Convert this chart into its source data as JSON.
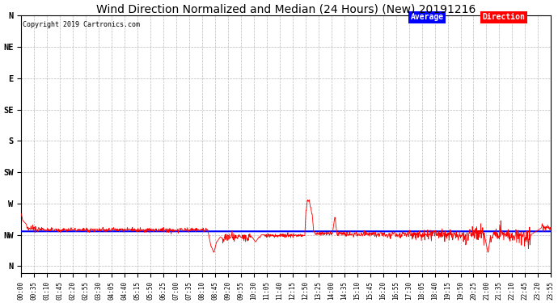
{
  "title": "Wind Direction Normalized and Median (24 Hours) (New) 20191216",
  "copyright": "Copyright 2019 Cartronics.com",
  "title_fontsize": 10,
  "fig_bg": "#ffffff",
  "plot_bg": "#ffffff",
  "grid_color": "#aaaaaa",
  "ytick_labels": [
    "N",
    "NW",
    "W",
    "SW",
    "S",
    "SE",
    "E",
    "NE",
    "N"
  ],
  "ytick_values": [
    360,
    315,
    270,
    225,
    180,
    135,
    90,
    45,
    0
  ],
  "ylim": [
    0,
    370
  ],
  "legend_labels": [
    "Average",
    "Direction"
  ],
  "legend_colors": [
    "#0000ff",
    "#ff0000"
  ],
  "avg_value": 310,
  "xtick_step_minutes": 35,
  "total_minutes": 1435,
  "note_noise_early": 3,
  "note_noise_mid": 4,
  "note_noise_late": 6
}
